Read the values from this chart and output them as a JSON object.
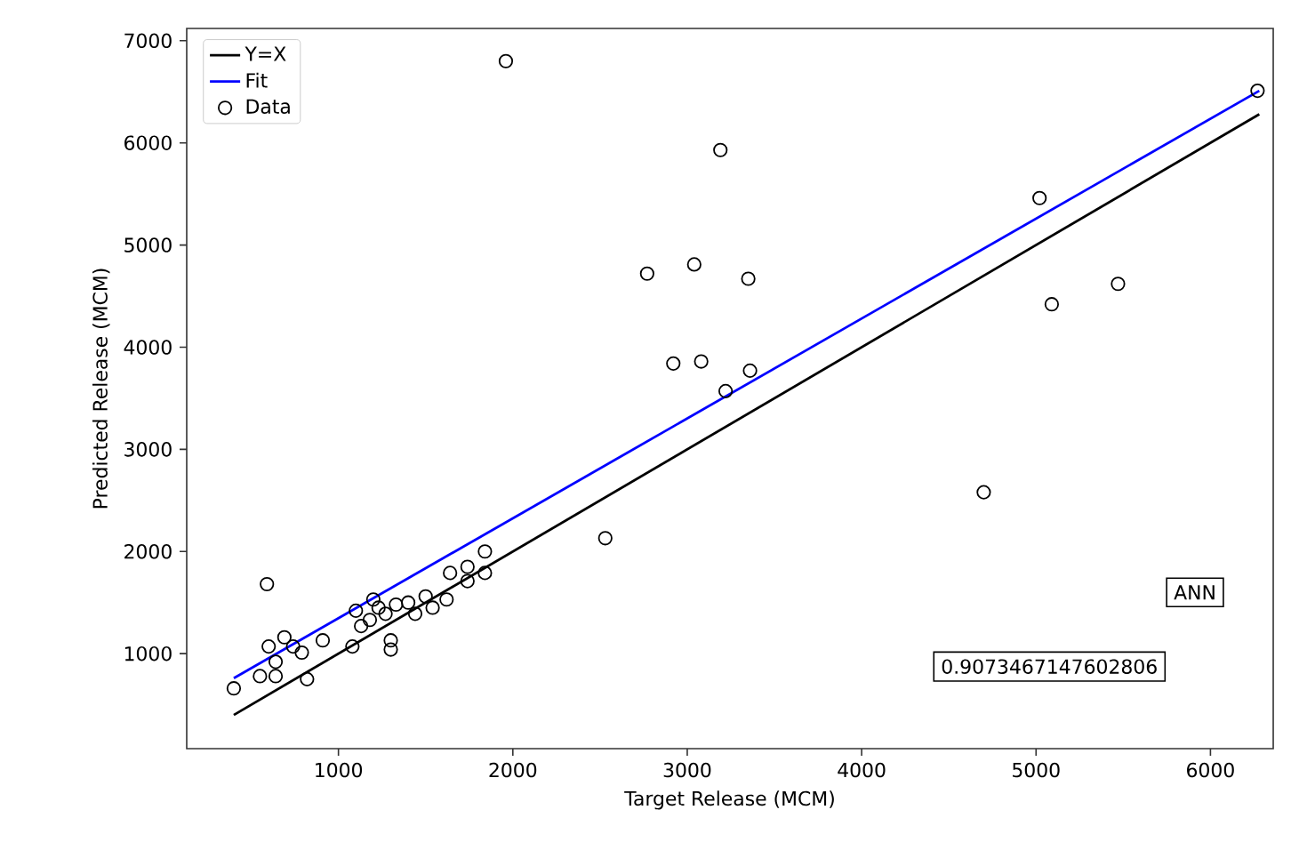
{
  "chart_data": {
    "type": "scatter",
    "xlabel": "Target Release (MCM)",
    "ylabel": "Predicted Release (MCM)",
    "xlim": [
      130,
      6360
    ],
    "ylim": [
      70,
      7120
    ],
    "xticks": [
      1000,
      2000,
      3000,
      4000,
      5000,
      6000
    ],
    "yticks": [
      1000,
      2000,
      3000,
      4000,
      5000,
      6000,
      7000
    ],
    "legend": "top left",
    "grid": false,
    "annotations": [
      "ANN",
      "0.9073467147602806"
    ],
    "series": [
      {
        "name": "Y=X",
        "type": "line",
        "color": "#000000",
        "marker": "none",
        "line_style": "solid",
        "x": [
          400,
          6280
        ],
        "values": [
          400,
          6280
        ]
      },
      {
        "name": "Fit",
        "type": "line",
        "color": "#0000ff",
        "marker": "none",
        "line_style": "solid",
        "x": [
          400,
          6280
        ],
        "values": [
          760,
          6510
        ]
      },
      {
        "name": "Data",
        "color": "#000000",
        "marker": "circle",
        "x": [
          400,
          590,
          600,
          690,
          640,
          550,
          640,
          820,
          790,
          910,
          740,
          1100,
          1080,
          1130,
          1200,
          1300,
          1300,
          1270,
          1330,
          1400,
          1440,
          1500,
          1540,
          1620,
          1640,
          1740,
          1740,
          1840,
          1840,
          1180,
          1230,
          2530,
          1960,
          3190,
          2770,
          3040,
          3350,
          2920,
          3080,
          3360,
          3220,
          5020,
          5470,
          5090,
          4700,
          6270
        ],
        "values": [
          660,
          1680,
          1070,
          1160,
          920,
          780,
          780,
          750,
          1010,
          1130,
          1070,
          1420,
          1070,
          1270,
          1530,
          1130,
          1040,
          1390,
          1480,
          1500,
          1390,
          1560,
          1450,
          1530,
          1790,
          1710,
          1850,
          2000,
          1790,
          1330,
          1450,
          2130,
          6800,
          5930,
          4720,
          4810,
          4670,
          3840,
          3860,
          3770,
          3570,
          5460,
          4620,
          4420,
          2580,
          6510
        ]
      }
    ]
  }
}
